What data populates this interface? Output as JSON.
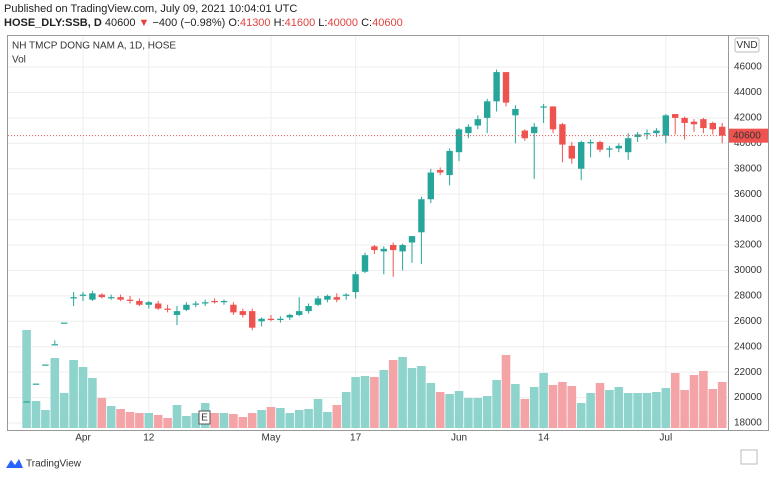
{
  "header": {
    "published": "Published on TradingView.com, July 09, 2021 10:04:01 UTC",
    "symbol": "HOSE_DLY:SSB, D",
    "price": "40600",
    "arrow": "▼",
    "change": "−400 (−0.98%)",
    "open_label": "O:",
    "open": "41300",
    "high_label": "H:",
    "high": "41600",
    "low_label": "L:",
    "low": "40000",
    "close_label": "C:",
    "close": "40600"
  },
  "footer": {
    "brand": "TradingView"
  },
  "chart_data": {
    "type": "candlestick",
    "title": "NH TMCP DONG NAM A, 1D, HOSE",
    "volume_label": "Vol",
    "currency": "VND",
    "event_marker": "E",
    "categories": [
      null,
      null,
      null,
      null,
      null,
      null,
      "Apr",
      null,
      null,
      null,
      null,
      null,
      null,
      "12",
      null,
      null,
      null,
      null,
      null,
      null,
      null,
      null,
      null,
      null,
      null,
      null,
      "May",
      null,
      null,
      null,
      null,
      null,
      null,
      null,
      null,
      "17",
      null,
      null,
      null,
      null,
      null,
      null,
      null,
      null,
      null,
      null,
      "Jun",
      null,
      null,
      null,
      null,
      null,
      null,
      null,
      null,
      "14",
      null,
      null,
      null,
      null,
      null,
      null,
      null,
      null,
      null,
      null,
      null,
      null,
      "Jul",
      null,
      null,
      null,
      null,
      null,
      null
    ],
    "open": [
      19700,
      21100,
      22600,
      24200,
      25900,
      27800,
      28000,
      27700,
      28100,
      27900,
      27900,
      27700,
      27600,
      27300,
      27400,
      27000,
      26500,
      26900,
      27300,
      27400,
      27600,
      27500,
      27300,
      26800,
      26800,
      26000,
      26200,
      26100,
      26300,
      26500,
      26800,
      27300,
      27700,
      27900,
      28000,
      28300,
      29900,
      31900,
      31500,
      32000,
      31500,
      32200,
      33000,
      35600,
      37900,
      37500,
      39300,
      40800,
      41400,
      42000,
      43300,
      45600,
      42200,
      41000,
      40800,
      42900,
      42900,
      41500,
      39800,
      38000,
      40000,
      40100,
      39500,
      39600,
      39300,
      40500,
      40700,
      40800,
      40600,
      42300,
      42000,
      41700,
      41900,
      41600,
      41300
    ],
    "high": [
      19700,
      21100,
      22600,
      24500,
      25900,
      28300,
      28300,
      28400,
      28200,
      28100,
      28100,
      28000,
      27800,
      27600,
      27600,
      27300,
      27200,
      27500,
      27600,
      27700,
      27800,
      27700,
      27500,
      27000,
      27000,
      26300,
      26500,
      26400,
      26600,
      27900,
      27400,
      28000,
      28100,
      28200,
      28200,
      29900,
      31400,
      32000,
      31900,
      32200,
      32100,
      32700,
      35800,
      38000,
      38100,
      39600,
      41200,
      41500,
      42200,
      43500,
      45800,
      45600,
      43000,
      41100,
      41600,
      43100,
      42900,
      41600,
      40100,
      40200,
      40300,
      40200,
      39800,
      40000,
      40800,
      40900,
      41100,
      41200,
      42300,
      42300,
      42100,
      41900,
      42000,
      41700,
      41600
    ],
    "low": [
      19700,
      21100,
      22600,
      24200,
      25900,
      27200,
      27600,
      27600,
      27800,
      27700,
      27600,
      27400,
      27200,
      27000,
      26900,
      26700,
      25700,
      26800,
      27100,
      27200,
      27400,
      27300,
      26500,
      26300,
      25300,
      25600,
      26000,
      25900,
      26100,
      26400,
      26600,
      27200,
      27500,
      27500,
      27700,
      27800,
      29800,
      31300,
      29700,
      29500,
      30000,
      30600,
      30500,
      35300,
      37500,
      36700,
      38600,
      40400,
      41100,
      40800,
      42500,
      42900,
      40000,
      40200,
      37200,
      41600,
      40800,
      38500,
      38400,
      37100,
      38900,
      39300,
      38900,
      39300,
      38700,
      40100,
      40300,
      40500,
      40000,
      40700,
      40300,
      40900,
      40800,
      40700,
      40000
    ],
    "close": [
      19700,
      21100,
      22600,
      24200,
      25900,
      27900,
      28100,
      28200,
      27900,
      27900,
      27700,
      27600,
      27300,
      27500,
      27000,
      26900,
      26800,
      27300,
      27400,
      27500,
      27500,
      27600,
      26700,
      26500,
      25500,
      26200,
      26100,
      26200,
      26500,
      26800,
      27200,
      27800,
      28000,
      27700,
      28100,
      29700,
      31200,
      31600,
      31700,
      31600,
      32000,
      32700,
      35600,
      37700,
      37700,
      39400,
      41100,
      41300,
      41900,
      43300,
      45600,
      43200,
      42700,
      40400,
      41300,
      42900,
      41100,
      39900,
      38800,
      40100,
      40100,
      39500,
      39600,
      39800,
      40400,
      40700,
      40800,
      41000,
      42200,
      42000,
      41600,
      41500,
      41200,
      41100,
      40600
    ],
    "volume": [
      98,
      27,
      18,
      70,
      35,
      68,
      61,
      50,
      30,
      22,
      19,
      16,
      15,
      15,
      13,
      10,
      23,
      12,
      15,
      25,
      15,
      15,
      14,
      11,
      15,
      18,
      21,
      20,
      15,
      18,
      19,
      29,
      16,
      23,
      36,
      51,
      52,
      51,
      58,
      68,
      71,
      60,
      62,
      45,
      36,
      34,
      37,
      30,
      30,
      32,
      48,
      73,
      44,
      29,
      41,
      55,
      43,
      46,
      42,
      25,
      35,
      45,
      38,
      41,
      35,
      35,
      35,
      36,
      40,
      55,
      38,
      53,
      57,
      39,
      46
    ],
    "last_price": 40600,
    "ylim": [
      17450,
      48440
    ],
    "yticks": [
      18000,
      20000,
      22000,
      24000,
      26000,
      28000,
      30000,
      32000,
      34000,
      36000,
      38000,
      40000,
      42000,
      44000,
      46000
    ],
    "up_color": "#26a69a",
    "down_color": "#ef5350",
    "up_volume_color": "#8fd4cc",
    "down_volume_color": "#f4a3a6",
    "grid": true
  }
}
